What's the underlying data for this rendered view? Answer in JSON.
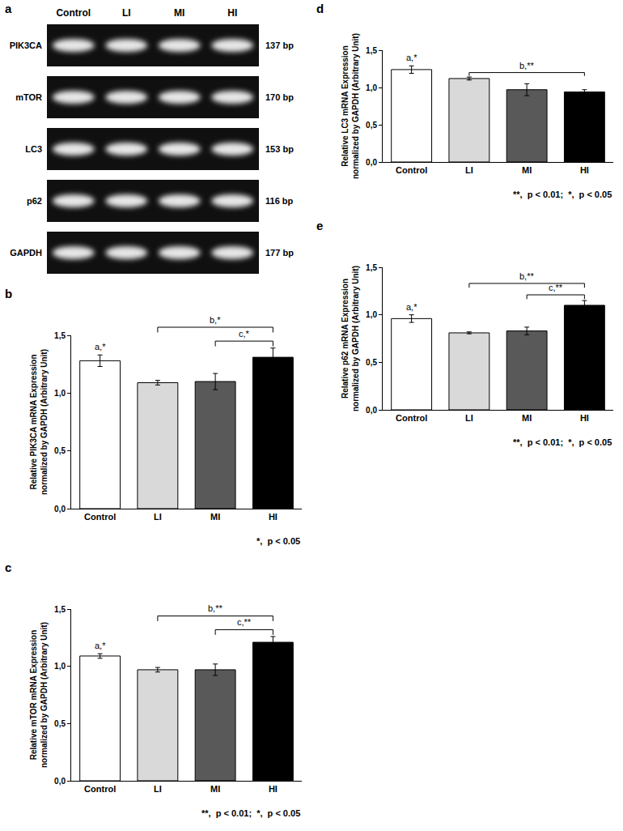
{
  "gel": {
    "panel": "a",
    "lanes": [
      "Control",
      "LI",
      "MI",
      "HI"
    ],
    "rows": [
      {
        "gene": "PIK3CA",
        "size": "137 bp"
      },
      {
        "gene": "mTOR",
        "size": "170 bp"
      },
      {
        "gene": "LC3",
        "size": "153 bp"
      },
      {
        "gene": "p62",
        "size": "116 bp"
      },
      {
        "gene": "GAPDH",
        "size": "177 bp"
      }
    ]
  },
  "chart_data": [
    {
      "type": "bar",
      "panel": "b",
      "y_label": "Relative PIK3CA mRNA Expression\nnormalized by GAPDH (Arbitrary Unit)",
      "categories": [
        "Control",
        "LI",
        "MI",
        "HI"
      ],
      "values": [
        1.28,
        1.09,
        1.1,
        1.31
      ],
      "errors": [
        0.05,
        0.02,
        0.07,
        0.08
      ],
      "colors": [
        "#ffffff",
        "#d9d9d9",
        "#595959",
        "#000000"
      ],
      "ylim": [
        0,
        1.5
      ],
      "yticks": [
        {
          "value": 0,
          "label": "0,0"
        },
        {
          "value": 0.5,
          "label": "0,5"
        },
        {
          "value": 1,
          "label": "1,0"
        },
        {
          "value": 1.5,
          "label": "1,5"
        }
      ],
      "grid": false,
      "annotations": [
        {
          "at": "Control",
          "label": "a,*"
        }
      ],
      "brackets": [
        {
          "from": "LI",
          "to": "HI",
          "label": "b,*"
        },
        {
          "from": "MI",
          "to": "HI",
          "label": "c,*"
        }
      ],
      "note": "*,  p < 0.05"
    },
    {
      "type": "bar",
      "panel": "c",
      "y_label": "Relative mTOR mRNA Expression\nnormalized by GAPDH (Arbitrary Unit)",
      "categories": [
        "Control",
        "LI",
        "MI",
        "HI"
      ],
      "values": [
        1.09,
        0.97,
        0.97,
        1.21
      ],
      "errors": [
        0.02,
        0.02,
        0.05,
        0.05
      ],
      "colors": [
        "#ffffff",
        "#d9d9d9",
        "#595959",
        "#000000"
      ],
      "ylim": [
        0,
        1.5
      ],
      "yticks": [
        {
          "value": 0,
          "label": "0,0"
        },
        {
          "value": 0.5,
          "label": "0,5"
        },
        {
          "value": 1,
          "label": "1,0"
        },
        {
          "value": 1.5,
          "label": "1,5"
        }
      ],
      "grid": false,
      "annotations": [
        {
          "at": "Control",
          "label": "a,*"
        }
      ],
      "brackets": [
        {
          "from": "LI",
          "to": "HI",
          "label": "b,**"
        },
        {
          "from": "MI",
          "to": "HI",
          "label": "c,**"
        }
      ],
      "note": "**,  p < 0.01;  *,  p < 0.05"
    },
    {
      "type": "bar",
      "panel": "d",
      "y_label": "Relative LC3 mRNA Expression\nnormalized by GAPDH (Arbitrary Unit)",
      "categories": [
        "Control",
        "LI",
        "MI",
        "HI"
      ],
      "values": [
        1.24,
        1.12,
        0.97,
        0.94
      ],
      "errors": [
        0.05,
        0.02,
        0.08,
        0.03
      ],
      "colors": [
        "#ffffff",
        "#d9d9d9",
        "#595959",
        "#000000"
      ],
      "ylim": [
        0,
        1.5
      ],
      "yticks": [
        {
          "value": 0,
          "label": "0,0"
        },
        {
          "value": 0.5,
          "label": "0,5"
        },
        {
          "value": 1,
          "label": "1,0"
        },
        {
          "value": 1.5,
          "label": "1,5"
        }
      ],
      "grid": false,
      "annotations": [
        {
          "at": "Control",
          "label": "a,*"
        }
      ],
      "brackets": [
        {
          "from": "LI",
          "to": "HI",
          "label": "b,**"
        }
      ],
      "note": "**,  p < 0.01;  *,  p < 0.05"
    },
    {
      "type": "bar",
      "panel": "e",
      "y_label": "Relative p62 mRNA Expression\nnormalized by GAPDH (Arbitrary Unit)",
      "categories": [
        "Control",
        "LI",
        "MI",
        "HI"
      ],
      "values": [
        0.96,
        0.81,
        0.83,
        1.1
      ],
      "errors": [
        0.04,
        0.01,
        0.04,
        0.05
      ],
      "colors": [
        "#ffffff",
        "#d9d9d9",
        "#595959",
        "#000000"
      ],
      "ylim": [
        0,
        1.5
      ],
      "yticks": [
        {
          "value": 0,
          "label": "0,0"
        },
        {
          "value": 0.5,
          "label": "0,5"
        },
        {
          "value": 1,
          "label": "1,0"
        },
        {
          "value": 1.5,
          "label": "1,5"
        }
      ],
      "grid": false,
      "annotations": [
        {
          "at": "Control",
          "label": "a,*"
        }
      ],
      "brackets": [
        {
          "from": "LI",
          "to": "HI",
          "label": "b,**"
        },
        {
          "from": "MI",
          "to": "HI",
          "label": "c,**"
        }
      ],
      "note": "**,  p < 0.01;  *,  p < 0.05"
    }
  ]
}
